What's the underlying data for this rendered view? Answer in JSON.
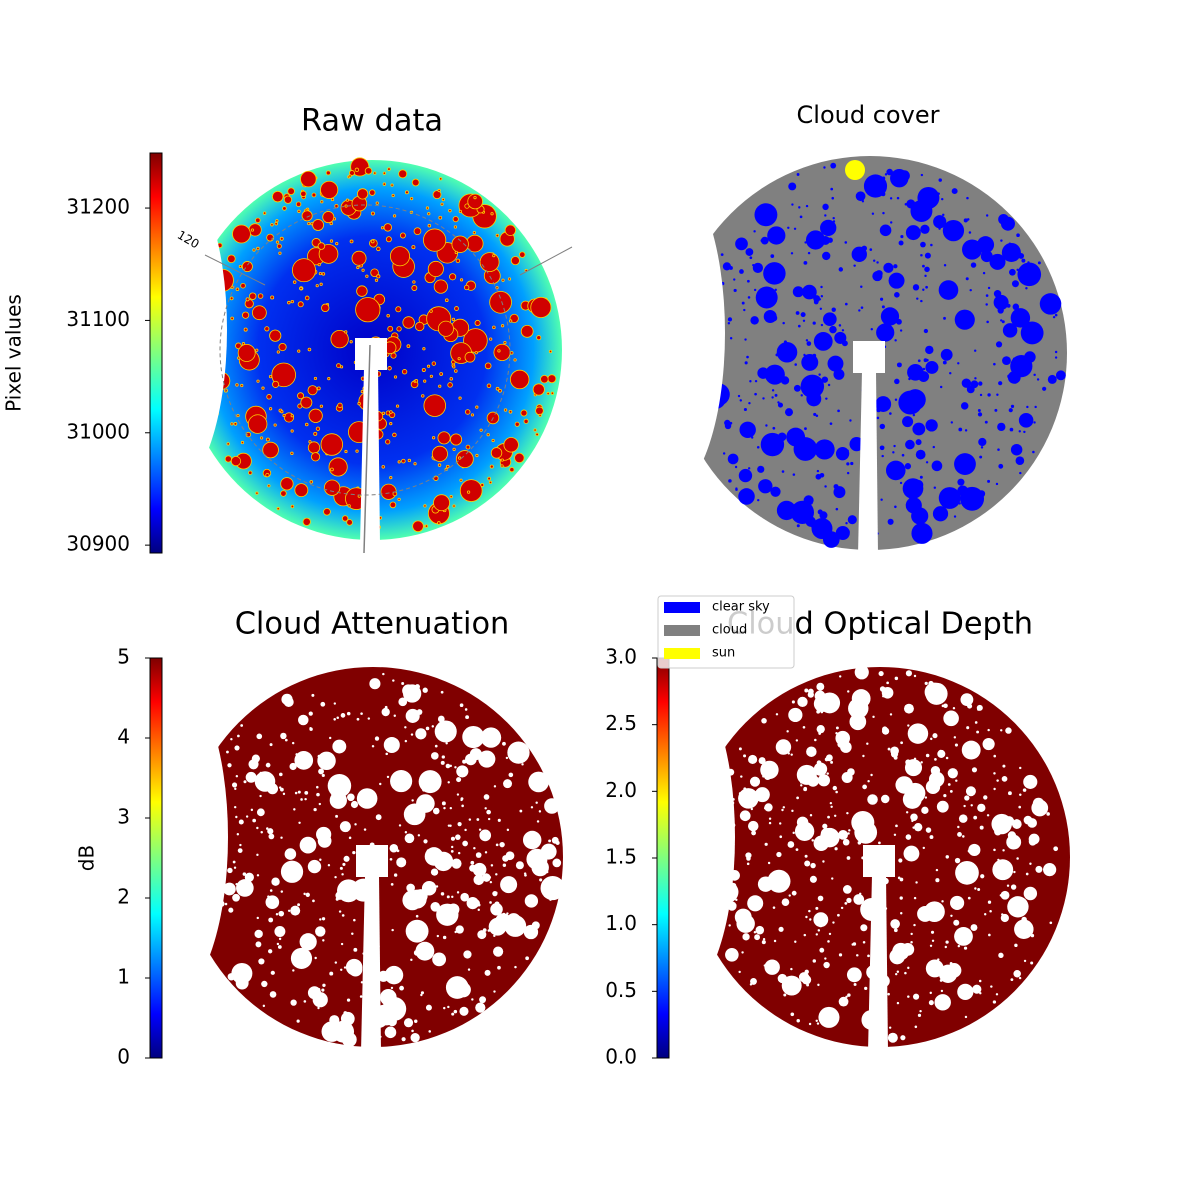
{
  "chart_data": [
    {
      "type": "image",
      "title": "Raw data",
      "annotation": "120",
      "colorbar": {
        "label": "Pixel values",
        "colormap": "jet",
        "lim": [
          30893,
          31249
        ],
        "ticks": [
          30900,
          31000,
          31100,
          31200
        ]
      }
    },
    {
      "type": "image",
      "title": "Cloud cover",
      "legend": [
        {
          "name": "clear sky",
          "color": "#0000ff"
        },
        {
          "name": "cloud",
          "color": "#808080"
        },
        {
          "name": "sun",
          "color": "#ffff00"
        }
      ]
    },
    {
      "type": "image",
      "title": "Cloud Attenuation",
      "colorbar": {
        "label": "dB",
        "colormap": "jet",
        "lim": [
          0,
          5
        ],
        "ticks": [
          0,
          1,
          2,
          3,
          4,
          5
        ]
      }
    },
    {
      "type": "image",
      "title": "Cloud Optical Depth",
      "colorbar": {
        "colormap": "jet",
        "lim": [
          0,
          3
        ],
        "ticks": [
          {
            "value": 0,
            "label": "0.0"
          },
          0.5,
          {
            "value": 1,
            "label": "1.0"
          },
          1.5,
          {
            "value": 2,
            "label": "2.0"
          },
          2.5,
          {
            "value": 3,
            "label": "3.0"
          }
        ]
      }
    }
  ]
}
